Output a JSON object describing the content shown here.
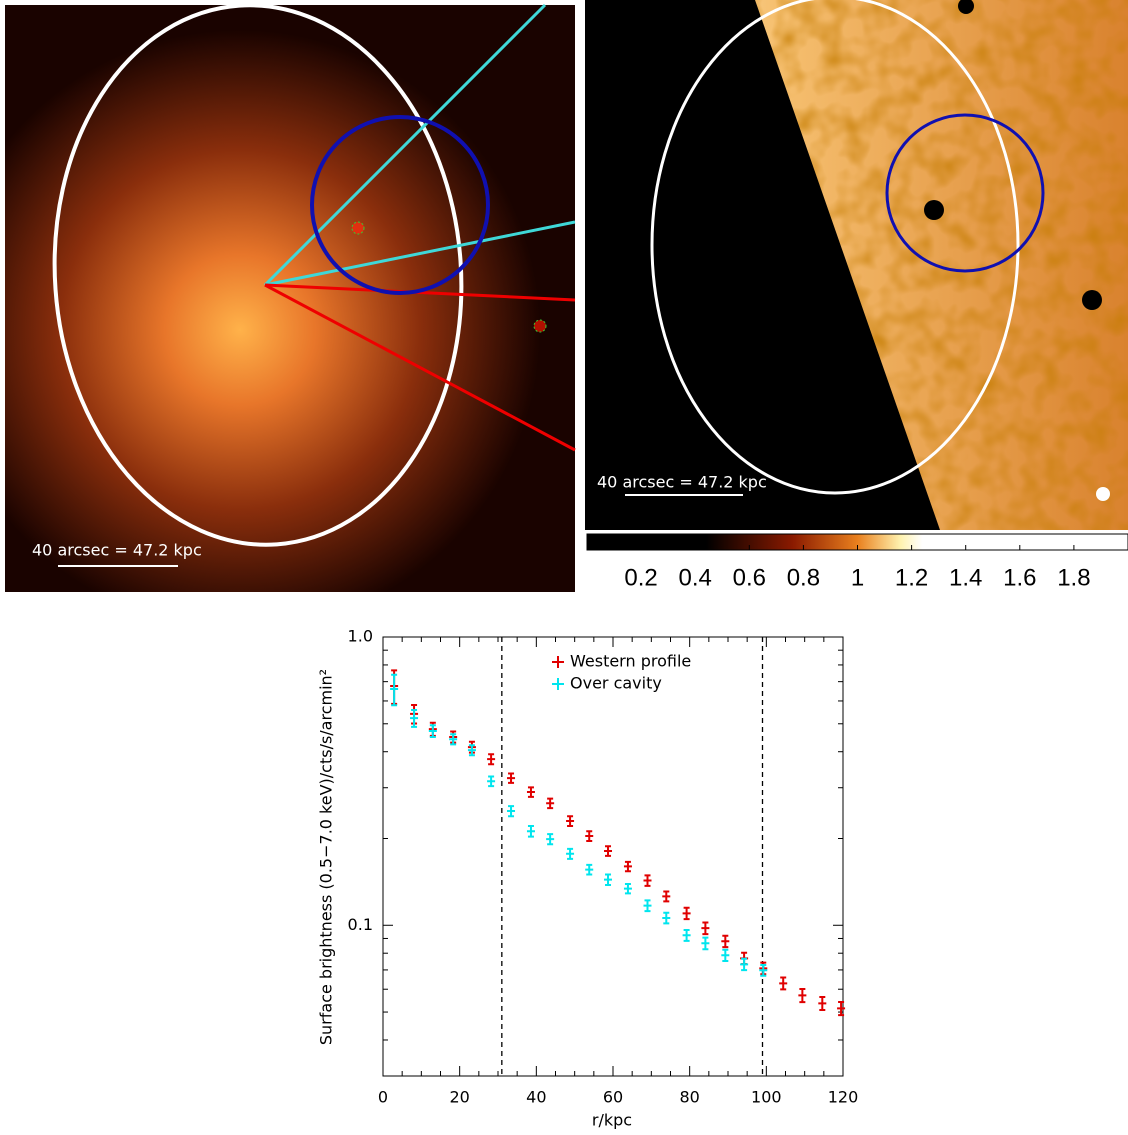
{
  "images": [
    {
      "scale_label": "40 arcsec = 47.2 kpc"
    },
    {
      "scale_label": "40 arcsec = 47.2 kpc",
      "colorbar": {
        "lim": [
          0,
          2
        ],
        "ticks": [
          0.2,
          0.4,
          0.6,
          0.8,
          1,
          1.2,
          1.4,
          1.6,
          1.8
        ]
      }
    }
  ],
  "chart_data": {
    "type": "errorbar",
    "x_label": "r/kpc",
    "y_label": "Surface brightness (0.5−7.0 keV)/cts/s/arcmin²",
    "xlim": [
      0,
      120
    ],
    "xticks": [
      0,
      20,
      40,
      60,
      80,
      100,
      120
    ],
    "xminorticks": [
      5,
      10,
      15,
      25,
      30,
      35,
      45,
      50,
      55,
      65,
      70,
      75,
      85,
      90,
      95,
      105,
      110,
      115
    ],
    "ylim": [
      0.03,
      1.0
    ],
    "log_y": true,
    "yticks": [
      {
        "value": 1.0,
        "label": "1.0"
      },
      0.1
    ],
    "yminorticks": [
      0.04,
      0.05,
      0.06,
      0.07,
      0.08,
      0.09,
      0.2,
      0.3,
      0.4,
      0.5,
      0.6,
      0.7,
      0.8,
      0.9
    ],
    "vlines": [
      31,
      99
    ],
    "series": [
      {
        "name": "Western profile",
        "color": "#e00000",
        "x": [
          2.9,
          8.1,
          13.0,
          18.3,
          23.2,
          28.2,
          33.4,
          38.6,
          43.6,
          48.8,
          53.8,
          58.7,
          63.9,
          69.0,
          73.9,
          79.2,
          84.1,
          89.3,
          94.2,
          99.2,
          104.4,
          109.4,
          114.6,
          119.5
        ],
        "values": [
          0.676,
          0.541,
          0.479,
          0.45,
          0.415,
          0.377,
          0.324,
          0.29,
          0.265,
          0.23,
          0.204,
          0.181,
          0.16,
          0.143,
          0.126,
          0.11,
          0.0977,
          0.088,
          0.0768,
          0.0709,
          0.0629,
          0.0571,
          0.0536,
          0.0515
        ],
        "errors": [
          0.09,
          0.04,
          0.025,
          0.02,
          0.018,
          0.015,
          0.012,
          0.011,
          0.01,
          0.009,
          0.008,
          0.007,
          0.006,
          0.006,
          0.005,
          0.005,
          0.0045,
          0.004,
          0.0035,
          0.0033,
          0.003,
          0.003,
          0.0028,
          0.0027
        ]
      },
      {
        "name": "Over cavity",
        "color": "#00e5ee",
        "x": [
          2.9,
          8.1,
          13.0,
          18.3,
          23.2,
          28.2,
          33.4,
          38.6,
          43.6,
          48.8,
          53.8,
          58.7,
          63.9,
          69.0,
          73.9,
          79.2,
          84.1,
          89.3,
          94.2,
          99.2
        ],
        "values": [
          0.66,
          0.523,
          0.472,
          0.442,
          0.405,
          0.316,
          0.249,
          0.212,
          0.199,
          0.177,
          0.156,
          0.144,
          0.134,
          0.117,
          0.106,
          0.0923,
          0.0866,
          0.0787,
          0.0732,
          0.0698
        ],
        "errors": [
          0.08,
          0.035,
          0.022,
          0.018,
          0.016,
          0.012,
          0.01,
          0.009,
          0.008,
          0.007,
          0.006,
          0.006,
          0.005,
          0.005,
          0.0045,
          0.004,
          0.004,
          0.0035,
          0.0033,
          0.003
        ]
      }
    ],
    "legend": "upper-center"
  }
}
